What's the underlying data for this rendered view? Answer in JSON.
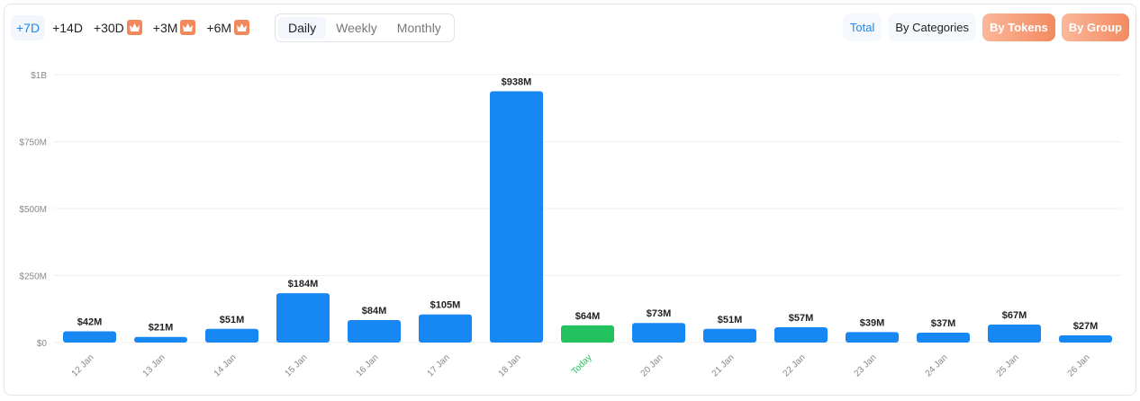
{
  "range_options": [
    {
      "label": "+7D",
      "active": true,
      "premium": false
    },
    {
      "label": "+14D",
      "premium": false
    },
    {
      "label": "+30D",
      "premium": true
    },
    {
      "label": "+3M",
      "premium": true
    },
    {
      "label": "+6M",
      "premium": true
    }
  ],
  "period_options": [
    {
      "label": "Daily",
      "active": true
    },
    {
      "label": "Weekly"
    },
    {
      "label": "Monthly"
    }
  ],
  "view_options": [
    {
      "label": "Total",
      "active": true
    },
    {
      "label": "By Categories"
    },
    {
      "label": "By Tokens",
      "premium": true
    },
    {
      "label": "By Group",
      "premium": true
    }
  ],
  "colors": {
    "bar": "#1787f3",
    "today": "#22c35e",
    "grid": "#efefef"
  },
  "chart_data": {
    "type": "bar",
    "categories": [
      "12 Jan",
      "13 Jan",
      "14 Jan",
      "15 Jan",
      "16 Jan",
      "17 Jan",
      "18 Jan",
      "Today",
      "20 Jan",
      "21 Jan",
      "22 Jan",
      "23 Jan",
      "24 Jan",
      "25 Jan",
      "26 Jan"
    ],
    "values": [
      42,
      21,
      51,
      184,
      84,
      105,
      938,
      64,
      73,
      51,
      57,
      39,
      37,
      67,
      27
    ],
    "value_labels": [
      "$42M",
      "$21M",
      "$51M",
      "$184M",
      "$84M",
      "$105M",
      "$938M",
      "$64M",
      "$73M",
      "$51M",
      "$57M",
      "$39M",
      "$37M",
      "$67M",
      "$27M"
    ],
    "highlight_index": 7,
    "unit": "millions USD",
    "yticks": [
      0,
      250,
      500,
      750,
      1000
    ],
    "ytick_labels": [
      "$0",
      "$250M",
      "$500M",
      "$750M",
      "$1B"
    ],
    "ylim": [
      0,
      1000
    ],
    "grid": true
  }
}
